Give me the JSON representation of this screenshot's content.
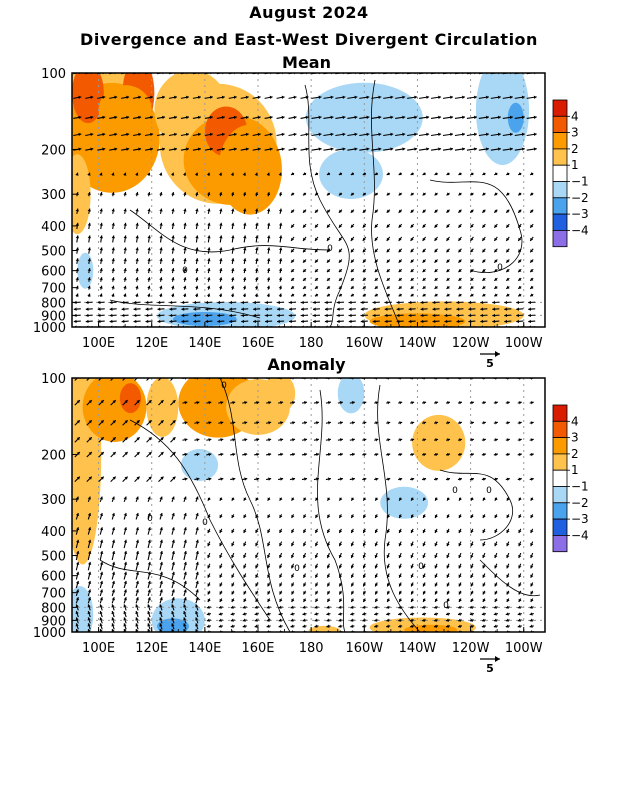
{
  "title_line1": "August 2024",
  "title_line2": "Divergence and East-West Divergent Circulation",
  "colors": {
    "pos1": "#ffc34d",
    "pos2": "#fb9b00",
    "pos3": "#f35a00",
    "pos4": "#d91c00",
    "neg1": "#a8d8f5",
    "neg2": "#4aa3ec",
    "neg3": "#1f5fe0",
    "neg4": "#8c6ee6"
  },
  "chart_data": [
    {
      "type": "heatmap",
      "title": "Mean",
      "x_ticks": [
        "100E",
        "120E",
        "140E",
        "160E",
        "180",
        "160W",
        "140W",
        "120W",
        "100W"
      ],
      "y_ticks": [
        "100",
        "200",
        "300",
        "400",
        "500",
        "600",
        "700",
        "800",
        "900",
        "1000"
      ],
      "y_scale": "log",
      "xlim": [
        "90E",
        "92W"
      ],
      "ylim": [
        1000,
        100
      ],
      "legend": {
        "labels": [
          "4",
          "3",
          "2",
          "1",
          "-1",
          "-2",
          "-3",
          "-4"
        ],
        "placement": "right"
      },
      "vector_reference": "5",
      "contour_labels": [
        "0",
        "0",
        "0"
      ]
    },
    {
      "type": "heatmap",
      "title": "Anomaly",
      "x_ticks": [
        "100E",
        "120E",
        "140E",
        "160E",
        "180",
        "160W",
        "140W",
        "120W",
        "100W"
      ],
      "y_ticks": [
        "100",
        "200",
        "300",
        "400",
        "500",
        "600",
        "700",
        "800",
        "900",
        "1000"
      ],
      "y_scale": "log",
      "xlim": [
        "90E",
        "92W"
      ],
      "ylim": [
        1000,
        100
      ],
      "legend": {
        "labels": [
          "4",
          "3",
          "2",
          "1",
          "-1",
          "-2",
          "-3",
          "-4"
        ],
        "placement": "right"
      },
      "vector_reference": "5",
      "contour_labels": [
        "0",
        "0",
        "0",
        "0",
        "0",
        "0",
        "0",
        "0"
      ]
    }
  ]
}
